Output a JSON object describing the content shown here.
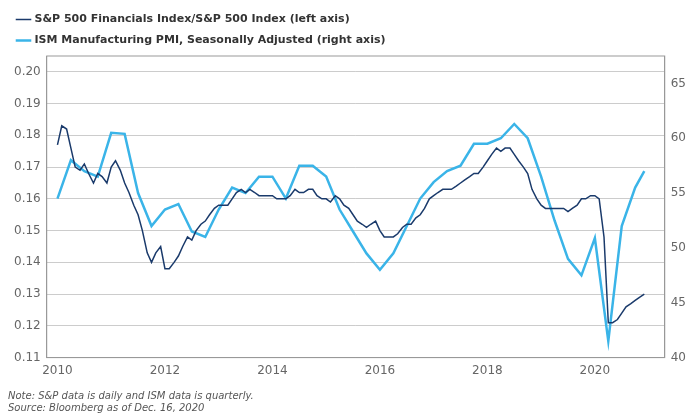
{
  "chart_data": {
    "type": "line",
    "annotations": [
      "Note: S&P data is daily and ISM data is quarterly.",
      "Source: Bloomberg as of Dec. 16, 2020"
    ],
    "xlim": [
      2009.8,
      2021.3
    ],
    "xticks": [
      2010,
      2012,
      2014,
      2016,
      2018,
      2020
    ],
    "ylim": [
      0.11,
      0.205
    ],
    "yticks": [
      0.11,
      0.12,
      0.13,
      0.14,
      0.15,
      0.16,
      0.17,
      0.18,
      0.19,
      {
        "value": 0.2,
        "label": "0.20"
      }
    ],
    "y2lim": [
      40,
      67.5
    ],
    "y2ticks": [
      40,
      45,
      50,
      55,
      60,
      65
    ],
    "grid": true,
    "legend": "upper left",
    "series": [
      {
        "name": "S&P 500 Financials Index/S&P 500 Index (left axis)",
        "color": "#1a3a6b",
        "axis": "y",
        "x": [
          2010.0,
          2010.08,
          2010.17,
          2010.25,
          2010.33,
          2010.42,
          2010.5,
          2010.58,
          2010.67,
          2010.75,
          2010.83,
          2010.92,
          2011.0,
          2011.08,
          2011.17,
          2011.25,
          2011.33,
          2011.42,
          2011.5,
          2011.58,
          2011.67,
          2011.75,
          2011.83,
          2011.92,
          2012.0,
          2012.08,
          2012.17,
          2012.25,
          2012.33,
          2012.42,
          2012.5,
          2012.58,
          2012.67,
          2012.75,
          2012.83,
          2012.92,
          2013.0,
          2013.08,
          2013.17,
          2013.25,
          2013.33,
          2013.42,
          2013.5,
          2013.58,
          2013.67,
          2013.75,
          2013.83,
          2013.92,
          2014.0,
          2014.08,
          2014.17,
          2014.25,
          2014.33,
          2014.42,
          2014.5,
          2014.58,
          2014.67,
          2014.75,
          2014.83,
          2014.92,
          2015.0,
          2015.08,
          2015.17,
          2015.25,
          2015.33,
          2015.42,
          2015.5,
          2015.58,
          2015.67,
          2015.75,
          2015.83,
          2015.92,
          2016.0,
          2016.08,
          2016.17,
          2016.25,
          2016.33,
          2016.42,
          2016.5,
          2016.58,
          2016.67,
          2016.75,
          2016.83,
          2016.92,
          2017.0,
          2017.08,
          2017.17,
          2017.25,
          2017.33,
          2017.42,
          2017.5,
          2017.58,
          2017.67,
          2017.75,
          2017.83,
          2017.92,
          2018.0,
          2018.08,
          2018.17,
          2018.25,
          2018.33,
          2018.42,
          2018.5,
          2018.58,
          2018.67,
          2018.75,
          2018.83,
          2018.92,
          2019.0,
          2019.08,
          2019.17,
          2019.25,
          2019.33,
          2019.42,
          2019.5,
          2019.58,
          2019.67,
          2019.75,
          2019.83,
          2019.92,
          2020.0,
          2020.08,
          2020.17,
          2020.25,
          2020.33,
          2020.42,
          2020.5,
          2020.58,
          2020.67,
          2020.75,
          2020.83,
          2020.92
        ],
        "values": [
          0.177,
          0.183,
          0.182,
          0.176,
          0.17,
          0.169,
          0.171,
          0.168,
          0.165,
          0.168,
          0.167,
          0.165,
          0.17,
          0.172,
          0.169,
          0.165,
          0.162,
          0.158,
          0.155,
          0.15,
          0.143,
          0.14,
          0.143,
          0.145,
          0.138,
          0.138,
          0.14,
          0.142,
          0.145,
          0.148,
          0.147,
          0.15,
          0.152,
          0.153,
          0.155,
          0.157,
          0.158,
          0.158,
          0.158,
          0.16,
          0.162,
          0.163,
          0.162,
          0.163,
          0.162,
          0.161,
          0.161,
          0.161,
          0.161,
          0.16,
          0.16,
          0.16,
          0.161,
          0.163,
          0.162,
          0.162,
          0.163,
          0.163,
          0.161,
          0.16,
          0.16,
          0.159,
          0.161,
          0.16,
          0.158,
          0.157,
          0.155,
          0.153,
          0.152,
          0.151,
          0.152,
          0.153,
          0.15,
          0.148,
          0.148,
          0.148,
          0.149,
          0.151,
          0.152,
          0.152,
          0.154,
          0.155,
          0.157,
          0.16,
          0.161,
          0.162,
          0.163,
          0.163,
          0.163,
          0.164,
          0.165,
          0.166,
          0.167,
          0.168,
          0.168,
          0.17,
          0.172,
          0.174,
          0.176,
          0.175,
          0.176,
          0.176,
          0.174,
          0.172,
          0.17,
          0.168,
          0.163,
          0.16,
          0.158,
          0.157,
          0.157,
          0.157,
          0.157,
          0.157,
          0.156,
          0.157,
          0.158,
          0.16,
          0.16,
          0.161,
          0.161,
          0.16,
          0.148,
          0.121,
          0.121,
          0.122,
          0.124,
          0.126,
          0.127,
          0.128,
          0.129,
          0.13
        ]
      },
      {
        "name": "ISM Manufacturing PMI, Seasonally Adjusted (right axis)",
        "color": "#3ab4e8",
        "axis": "y2",
        "x": [
          2010.0,
          2010.25,
          2010.5,
          2010.75,
          2011.0,
          2011.25,
          2011.5,
          2011.75,
          2012.0,
          2012.25,
          2012.5,
          2012.75,
          2013.0,
          2013.25,
          2013.5,
          2013.75,
          2014.0,
          2014.25,
          2014.5,
          2014.75,
          2015.0,
          2015.25,
          2015.5,
          2015.75,
          2016.0,
          2016.25,
          2016.5,
          2016.75,
          2017.0,
          2017.25,
          2017.5,
          2017.75,
          2018.0,
          2018.25,
          2018.5,
          2018.75,
          2019.0,
          2019.25,
          2019.5,
          2019.75,
          2020.0,
          2020.25,
          2020.5,
          2020.75,
          2020.92
        ],
        "values": [
          54.5,
          58.0,
          57.0,
          56.5,
          60.5,
          60.4,
          55.0,
          52.0,
          53.5,
          54.0,
          51.5,
          51.0,
          53.5,
          55.5,
          55.0,
          56.5,
          56.5,
          54.5,
          57.5,
          57.5,
          56.5,
          53.5,
          51.5,
          49.5,
          48.0,
          49.5,
          52.0,
          54.5,
          56.0,
          57.0,
          57.5,
          59.5,
          59.5,
          60.0,
          61.3,
          60.0,
          56.5,
          52.5,
          49.0,
          47.5,
          50.9,
          41.5,
          52.0,
          55.5,
          57.0
        ]
      }
    ]
  }
}
